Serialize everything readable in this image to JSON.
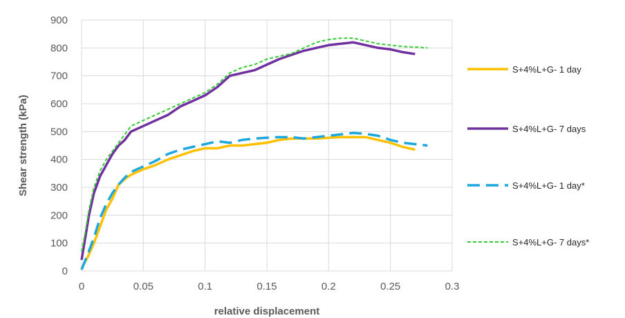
{
  "chart_data": {
    "type": "line",
    "title": "",
    "xlabel": "relative displacement",
    "ylabel": "Shear strength (kPa)",
    "xlim": [
      0,
      0.3
    ],
    "ylim": [
      0,
      900
    ],
    "x_ticks": [
      "0",
      "0.05",
      "0.1",
      "0.15",
      "0.2",
      "0.25",
      "0.3"
    ],
    "y_ticks": [
      "0",
      "100",
      "200",
      "300",
      "400",
      "500",
      "600",
      "700",
      "800",
      "900"
    ],
    "grid": true,
    "legend_position": "right",
    "series": [
      {
        "name": "S+4%L+G- 1 day",
        "color": "#FFC000",
        "style": "solid",
        "points": [
          [
            0,
            10
          ],
          [
            0.005,
            50
          ],
          [
            0.01,
            100
          ],
          [
            0.015,
            160
          ],
          [
            0.02,
            220
          ],
          [
            0.025,
            260
          ],
          [
            0.03,
            310
          ],
          [
            0.035,
            330
          ],
          [
            0.04,
            345
          ],
          [
            0.05,
            365
          ],
          [
            0.06,
            380
          ],
          [
            0.07,
            400
          ],
          [
            0.08,
            415
          ],
          [
            0.09,
            430
          ],
          [
            0.1,
            440
          ],
          [
            0.11,
            440
          ],
          [
            0.12,
            450
          ],
          [
            0.13,
            450
          ],
          [
            0.14,
            455
          ],
          [
            0.15,
            460
          ],
          [
            0.16,
            470
          ],
          [
            0.17,
            475
          ],
          [
            0.18,
            475
          ],
          [
            0.19,
            475
          ],
          [
            0.2,
            478
          ],
          [
            0.21,
            480
          ],
          [
            0.22,
            480
          ],
          [
            0.23,
            480
          ],
          [
            0.24,
            470
          ],
          [
            0.25,
            460
          ],
          [
            0.26,
            445
          ],
          [
            0.27,
            435
          ]
        ]
      },
      {
        "name": "S+4%L+G- 7 days",
        "color": "#7030A0",
        "style": "solid",
        "points": [
          [
            0,
            40
          ],
          [
            0.003,
            120
          ],
          [
            0.006,
            200
          ],
          [
            0.01,
            280
          ],
          [
            0.015,
            340
          ],
          [
            0.02,
            380
          ],
          [
            0.025,
            420
          ],
          [
            0.03,
            450
          ],
          [
            0.035,
            470
          ],
          [
            0.04,
            500
          ],
          [
            0.05,
            520
          ],
          [
            0.06,
            540
          ],
          [
            0.065,
            550
          ],
          [
            0.07,
            560
          ],
          [
            0.08,
            590
          ],
          [
            0.09,
            610
          ],
          [
            0.1,
            630
          ],
          [
            0.11,
            660
          ],
          [
            0.12,
            700
          ],
          [
            0.13,
            710
          ],
          [
            0.14,
            720
          ],
          [
            0.15,
            740
          ],
          [
            0.16,
            760
          ],
          [
            0.17,
            775
          ],
          [
            0.18,
            790
          ],
          [
            0.19,
            800
          ],
          [
            0.2,
            810
          ],
          [
            0.21,
            815
          ],
          [
            0.22,
            820
          ],
          [
            0.23,
            810
          ],
          [
            0.24,
            800
          ],
          [
            0.25,
            795
          ],
          [
            0.26,
            785
          ],
          [
            0.27,
            778
          ]
        ]
      },
      {
        "name": "S+4%L+G- 1 day*",
        "color": "#1CA7DD",
        "style": "longdash",
        "points": [
          [
            0,
            5
          ],
          [
            0.005,
            60
          ],
          [
            0.01,
            120
          ],
          [
            0.015,
            190
          ],
          [
            0.02,
            240
          ],
          [
            0.025,
            280
          ],
          [
            0.03,
            310
          ],
          [
            0.035,
            335
          ],
          [
            0.04,
            355
          ],
          [
            0.05,
            375
          ],
          [
            0.06,
            395
          ],
          [
            0.07,
            420
          ],
          [
            0.08,
            435
          ],
          [
            0.09,
            445
          ],
          [
            0.1,
            455
          ],
          [
            0.11,
            465
          ],
          [
            0.12,
            460
          ],
          [
            0.13,
            470
          ],
          [
            0.14,
            475
          ],
          [
            0.15,
            478
          ],
          [
            0.16,
            480
          ],
          [
            0.17,
            480
          ],
          [
            0.18,
            475
          ],
          [
            0.19,
            480
          ],
          [
            0.2,
            485
          ],
          [
            0.21,
            490
          ],
          [
            0.22,
            495
          ],
          [
            0.23,
            492
          ],
          [
            0.24,
            485
          ],
          [
            0.25,
            470
          ],
          [
            0.26,
            460
          ],
          [
            0.27,
            455
          ],
          [
            0.28,
            450
          ]
        ]
      },
      {
        "name": "S+4%L+G- 7 days*",
        "color": "#33CC33",
        "style": "shortdash",
        "points": [
          [
            0,
            70
          ],
          [
            0.003,
            140
          ],
          [
            0.006,
            220
          ],
          [
            0.01,
            300
          ],
          [
            0.015,
            360
          ],
          [
            0.02,
            400
          ],
          [
            0.025,
            430
          ],
          [
            0.03,
            460
          ],
          [
            0.035,
            490
          ],
          [
            0.04,
            520
          ],
          [
            0.05,
            540
          ],
          [
            0.06,
            560
          ],
          [
            0.07,
            580
          ],
          [
            0.08,
            600
          ],
          [
            0.09,
            620
          ],
          [
            0.1,
            640
          ],
          [
            0.11,
            670
          ],
          [
            0.12,
            710
          ],
          [
            0.13,
            730
          ],
          [
            0.14,
            740
          ],
          [
            0.15,
            760
          ],
          [
            0.16,
            770
          ],
          [
            0.17,
            780
          ],
          [
            0.18,
            800
          ],
          [
            0.19,
            820
          ],
          [
            0.2,
            830
          ],
          [
            0.21,
            835
          ],
          [
            0.22,
            835
          ],
          [
            0.23,
            825
          ],
          [
            0.24,
            815
          ],
          [
            0.25,
            810
          ],
          [
            0.26,
            805
          ],
          [
            0.27,
            803
          ],
          [
            0.28,
            800
          ]
        ]
      }
    ]
  }
}
